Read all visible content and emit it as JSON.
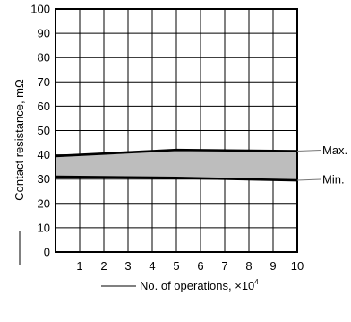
{
  "chart_data": {
    "type": "line",
    "title": "",
    "xlabel": "No. of operations, ×10",
    "xlabel_exponent": "4",
    "ylabel": "Contact resistance, mΩ",
    "x_ticks": [
      "1",
      "2",
      "3",
      "4",
      "5",
      "6",
      "7",
      "8",
      "9",
      "10"
    ],
    "y_ticks": [
      "0",
      "10",
      "20",
      "30",
      "40",
      "50",
      "60",
      "70",
      "80",
      "90",
      "100"
    ],
    "xlim": [
      0,
      10
    ],
    "ylim": [
      0,
      100
    ],
    "grid": true,
    "legend": "none",
    "band_fill_color": "#bdbdbd",
    "line_color": "#000000",
    "series": [
      {
        "name": "Max.",
        "x": [
          0,
          5,
          10
        ],
        "values": [
          39.5,
          42,
          41.5
        ]
      },
      {
        "name": "Min.",
        "x": [
          0,
          5,
          10
        ],
        "values": [
          31,
          30.5,
          29.5
        ]
      }
    ]
  }
}
